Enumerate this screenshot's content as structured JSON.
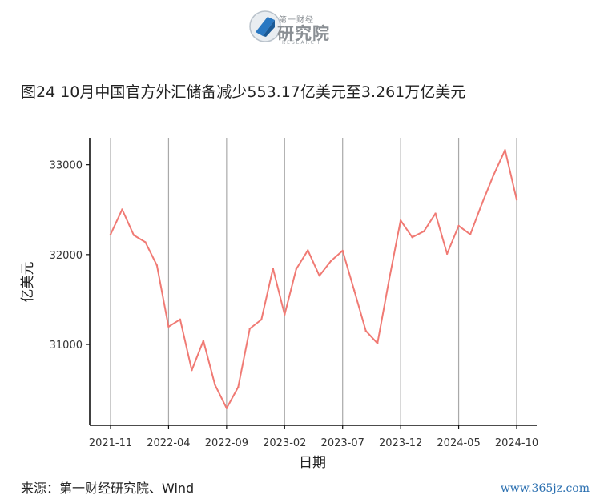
{
  "header": {
    "logo_top": "第一财经",
    "logo_main": "研究院",
    "logo_sub": "RESEARCH"
  },
  "title": "图24 10月中国官方外汇储备减少553.17亿美元至3.261万亿美元",
  "source": "来源：第一财经研究院、Wind",
  "watermark": "www.365jz.com",
  "chart_data": {
    "type": "line",
    "xlabel": "日期",
    "ylabel": "亿美元",
    "ylim": [
      30100,
      33300
    ],
    "yticks": [
      31000,
      32000,
      33000
    ],
    "grid": "vertical",
    "line_color": "#f07a74",
    "x": [
      "2021-11",
      "2021-12",
      "2022-01",
      "2022-02",
      "2022-03",
      "2022-04",
      "2022-05",
      "2022-06",
      "2022-07",
      "2022-08",
      "2022-09",
      "2022-10",
      "2022-11",
      "2022-12",
      "2023-01",
      "2023-02",
      "2023-03",
      "2023-04",
      "2023-05",
      "2023-06",
      "2023-07",
      "2023-08",
      "2023-09",
      "2023-10",
      "2023-11",
      "2023-12",
      "2024-01",
      "2024-02",
      "2024-03",
      "2024-04",
      "2024-05",
      "2024-06",
      "2024-07",
      "2024-08",
      "2024-09",
      "2024-10"
    ],
    "xtick_labels": [
      "2021-11",
      "2022-04",
      "2022-09",
      "2023-02",
      "2023-07",
      "2023-12",
      "2024-05",
      "2024-10"
    ],
    "values": [
      32224,
      32502,
      32216,
      32138,
      31880,
      31197,
      31278,
      30713,
      31041,
      30549,
      30290,
      30524,
      31175,
      31277,
      31845,
      31332,
      31839,
      32048,
      31765,
      31930,
      32043,
      31601,
      31151,
      31012,
      31718,
      32380,
      32193,
      32258,
      32457,
      32008,
      32320,
      32224,
      32564,
      32882,
      33164,
      32611
    ]
  }
}
